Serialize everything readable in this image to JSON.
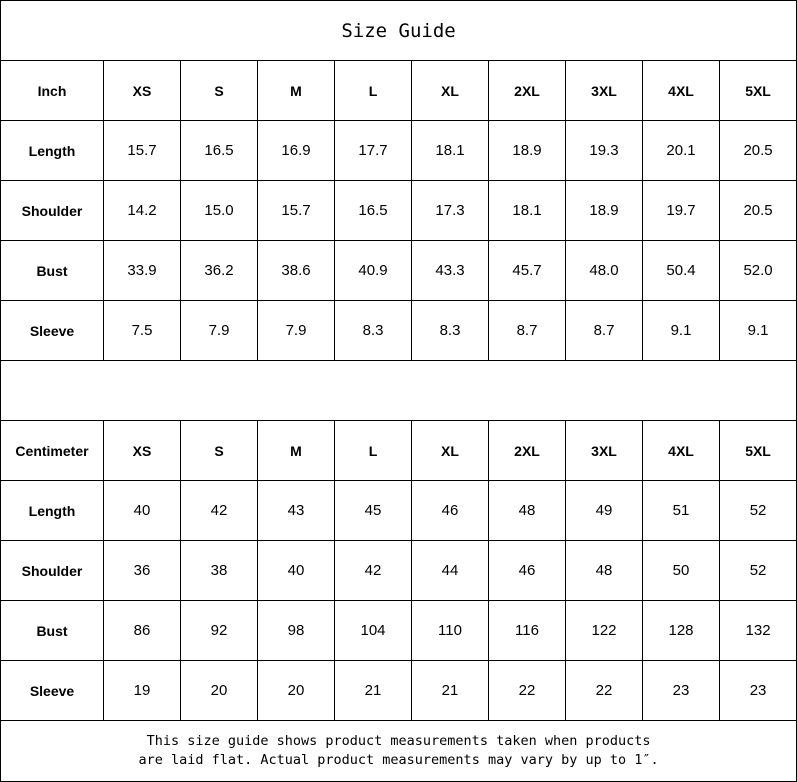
{
  "title": "Size Guide",
  "sizes": [
    "XS",
    "S",
    "M",
    "L",
    "XL",
    "2XL",
    "3XL",
    "4XL",
    "5XL"
  ],
  "inch": {
    "unit_label": "Inch",
    "rows": [
      {
        "label": "Length",
        "values": [
          "15.7",
          "16.5",
          "16.9",
          "17.7",
          "18.1",
          "18.9",
          "19.3",
          "20.1",
          "20.5"
        ]
      },
      {
        "label": "Shoulder",
        "values": [
          "14.2",
          "15.0",
          "15.7",
          "16.5",
          "17.3",
          "18.1",
          "18.9",
          "19.7",
          "20.5"
        ]
      },
      {
        "label": "Bust",
        "values": [
          "33.9",
          "36.2",
          "38.6",
          "40.9",
          "43.3",
          "45.7",
          "48.0",
          "50.4",
          "52.0"
        ]
      },
      {
        "label": "Sleeve",
        "values": [
          "7.5",
          "7.9",
          "7.9",
          "8.3",
          "8.3",
          "8.7",
          "8.7",
          "9.1",
          "9.1"
        ]
      }
    ]
  },
  "cm": {
    "unit_label": "Centimeter",
    "rows": [
      {
        "label": "Length",
        "values": [
          "40",
          "42",
          "43",
          "45",
          "46",
          "48",
          "49",
          "51",
          "52"
        ]
      },
      {
        "label": "Shoulder",
        "values": [
          "36",
          "38",
          "40",
          "42",
          "44",
          "46",
          "48",
          "50",
          "52"
        ]
      },
      {
        "label": "Bust",
        "values": [
          "86",
          "92",
          "98",
          "104",
          "110",
          "116",
          "122",
          "128",
          "132"
        ]
      },
      {
        "label": "Sleeve",
        "values": [
          "19",
          "20",
          "20",
          "21",
          "21",
          "22",
          "22",
          "23",
          "23"
        ]
      }
    ]
  },
  "footer": {
    "line1": "This size guide shows product measurements taken when products",
    "line2": "are laid flat. Actual product measurements may vary by up to 1″."
  }
}
